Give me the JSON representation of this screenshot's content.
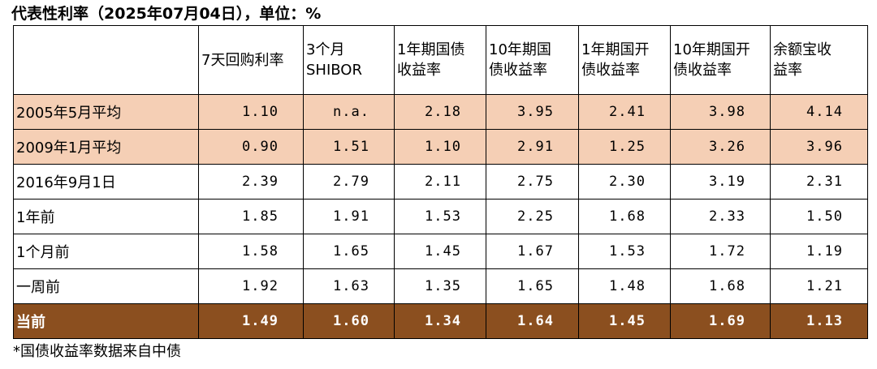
{
  "title": "代表性利率（2025年07月04日），单位：%",
  "columns": [
    "",
    "7天回购利率",
    "3个月\nSHIBOR",
    "1年期国债\n收益率",
    "10年期国\n债收益率",
    "1年期国开\n债收益率",
    "10年期国开\n债收益率",
    "余额宝收\n益率"
  ],
  "rows": [
    {
      "label": "2005年5月平均",
      "values": [
        "1.10",
        "n.a.",
        "2.18",
        "3.95",
        "2.41",
        "3.98",
        "4.14"
      ]
    },
    {
      "label": "2009年1月平均",
      "values": [
        "0.90",
        "1.51",
        "1.10",
        "2.91",
        "1.25",
        "3.26",
        "3.96"
      ]
    },
    {
      "label": "2016年9月1日",
      "values": [
        "2.39",
        "2.79",
        "2.11",
        "2.75",
        "2.30",
        "3.19",
        "2.31"
      ]
    },
    {
      "label": "1年前",
      "values": [
        "1.85",
        "1.91",
        "1.53",
        "2.25",
        "1.68",
        "2.33",
        "1.50"
      ]
    },
    {
      "label": "1个月前",
      "values": [
        "1.58",
        "1.65",
        "1.45",
        "1.67",
        "1.53",
        "1.72",
        "1.19"
      ]
    },
    {
      "label": "一周前",
      "values": [
        "1.92",
        "1.63",
        "1.35",
        "1.65",
        "1.48",
        "1.68",
        "1.21"
      ]
    },
    {
      "label": "当前",
      "values": [
        "1.49",
        "1.60",
        "1.34",
        "1.64",
        "1.45",
        "1.69",
        "1.13"
      ]
    }
  ],
  "footnote": "*国债收益率数据来自中债",
  "colors": {
    "highlight_rows": "#f5cfb5",
    "current_row": "#8b4f1f",
    "current_text": "#ffffff"
  }
}
